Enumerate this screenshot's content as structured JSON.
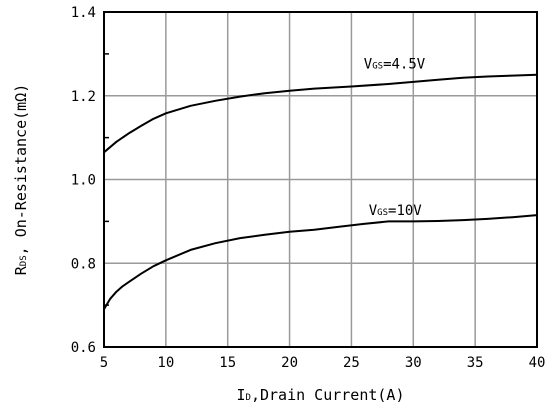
{
  "chart_data": {
    "type": "line",
    "xlabel": {
      "main": "I",
      "sub": "D",
      "rest": ",Drain Current(A)"
    },
    "ylabel": {
      "main": "R",
      "sub": "DS",
      "rest": ", On-Resistance(mΩ)"
    },
    "xlim": [
      5,
      40
    ],
    "ylim": [
      0.6,
      1.4
    ],
    "xticks": [
      5,
      10,
      15,
      20,
      25,
      30,
      35,
      40
    ],
    "yticks": [
      0.6,
      0.8,
      1.0,
      1.2,
      1.4
    ],
    "xtick_labels": [
      "5",
      "10",
      "15",
      "20",
      "25",
      "30",
      "35",
      "40"
    ],
    "ytick_labels": [
      "0.6",
      "0.8",
      "1.0",
      "1.2",
      "1.4"
    ],
    "grid": true,
    "series": [
      {
        "label": {
          "main": "V",
          "sub": "GS",
          "rest": "=4.5V"
        },
        "x": [
          5,
          6,
          7,
          8,
          9,
          10,
          12,
          14,
          16,
          18,
          20,
          22,
          25,
          28,
          30,
          32,
          34,
          36,
          38,
          40
        ],
        "y": [
          1.065,
          1.09,
          1.11,
          1.128,
          1.145,
          1.158,
          1.176,
          1.188,
          1.198,
          1.206,
          1.212,
          1.217,
          1.222,
          1.228,
          1.233,
          1.238,
          1.243,
          1.246,
          1.248,
          1.25
        ]
      },
      {
        "label": {
          "main": "V",
          "sub": "GS",
          "rest": "=10V"
        },
        "x": [
          5,
          5.5,
          6,
          6.5,
          7,
          8,
          9,
          10,
          12,
          14,
          16,
          18,
          20,
          22,
          24,
          26,
          28,
          30,
          32,
          34,
          36,
          38,
          40
        ],
        "y": [
          0.69,
          0.715,
          0.732,
          0.745,
          0.755,
          0.775,
          0.793,
          0.807,
          0.832,
          0.848,
          0.86,
          0.868,
          0.875,
          0.88,
          0.887,
          0.894,
          0.9,
          0.9,
          0.901,
          0.903,
          0.906,
          0.91,
          0.915
        ]
      }
    ]
  }
}
